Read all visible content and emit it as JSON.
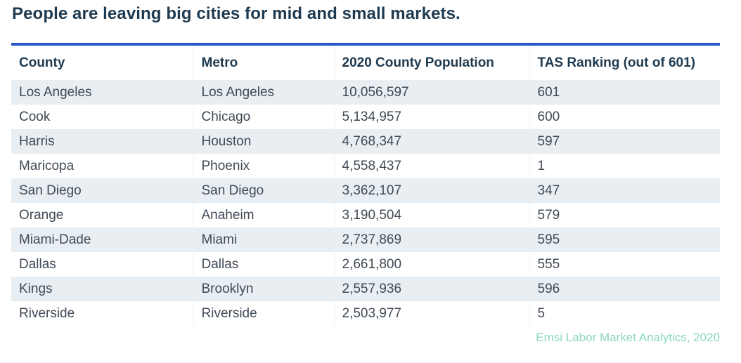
{
  "title": "People are leaving big cities for mid and small markets.",
  "table": {
    "headers": [
      "County",
      "Metro",
      "2020 County Population",
      "TAS Ranking (out of 601)"
    ],
    "rows": [
      [
        "Los Angeles",
        "Los Angeles",
        "10,056,597",
        "601"
      ],
      [
        "Cook",
        "Chicago",
        "5,134,957",
        "600"
      ],
      [
        "Harris",
        "Houston",
        "4,768,347",
        "597"
      ],
      [
        "Maricopa",
        "Phoenix",
        "4,558,437",
        "1"
      ],
      [
        "San Diego",
        "San Diego",
        "3,362,107",
        "347"
      ],
      [
        "Orange",
        "Anaheim",
        "3,190,504",
        "579"
      ],
      [
        "Miami-Dade",
        "Miami",
        "2,737,869",
        "595"
      ],
      [
        "Dallas",
        "Dallas",
        "2,661,800",
        "555"
      ],
      [
        "Kings",
        "Brooklyn",
        "2,557,936",
        "596"
      ],
      [
        "Riverside",
        "Riverside",
        "2,503,977",
        "5"
      ]
    ]
  },
  "source": "Emsi Labor Market Analytics, 2020",
  "colors": {
    "accent": "#2557c8",
    "title": "#1e3a50",
    "source": "#8cd8bd",
    "stripe": "#e8eef1"
  }
}
